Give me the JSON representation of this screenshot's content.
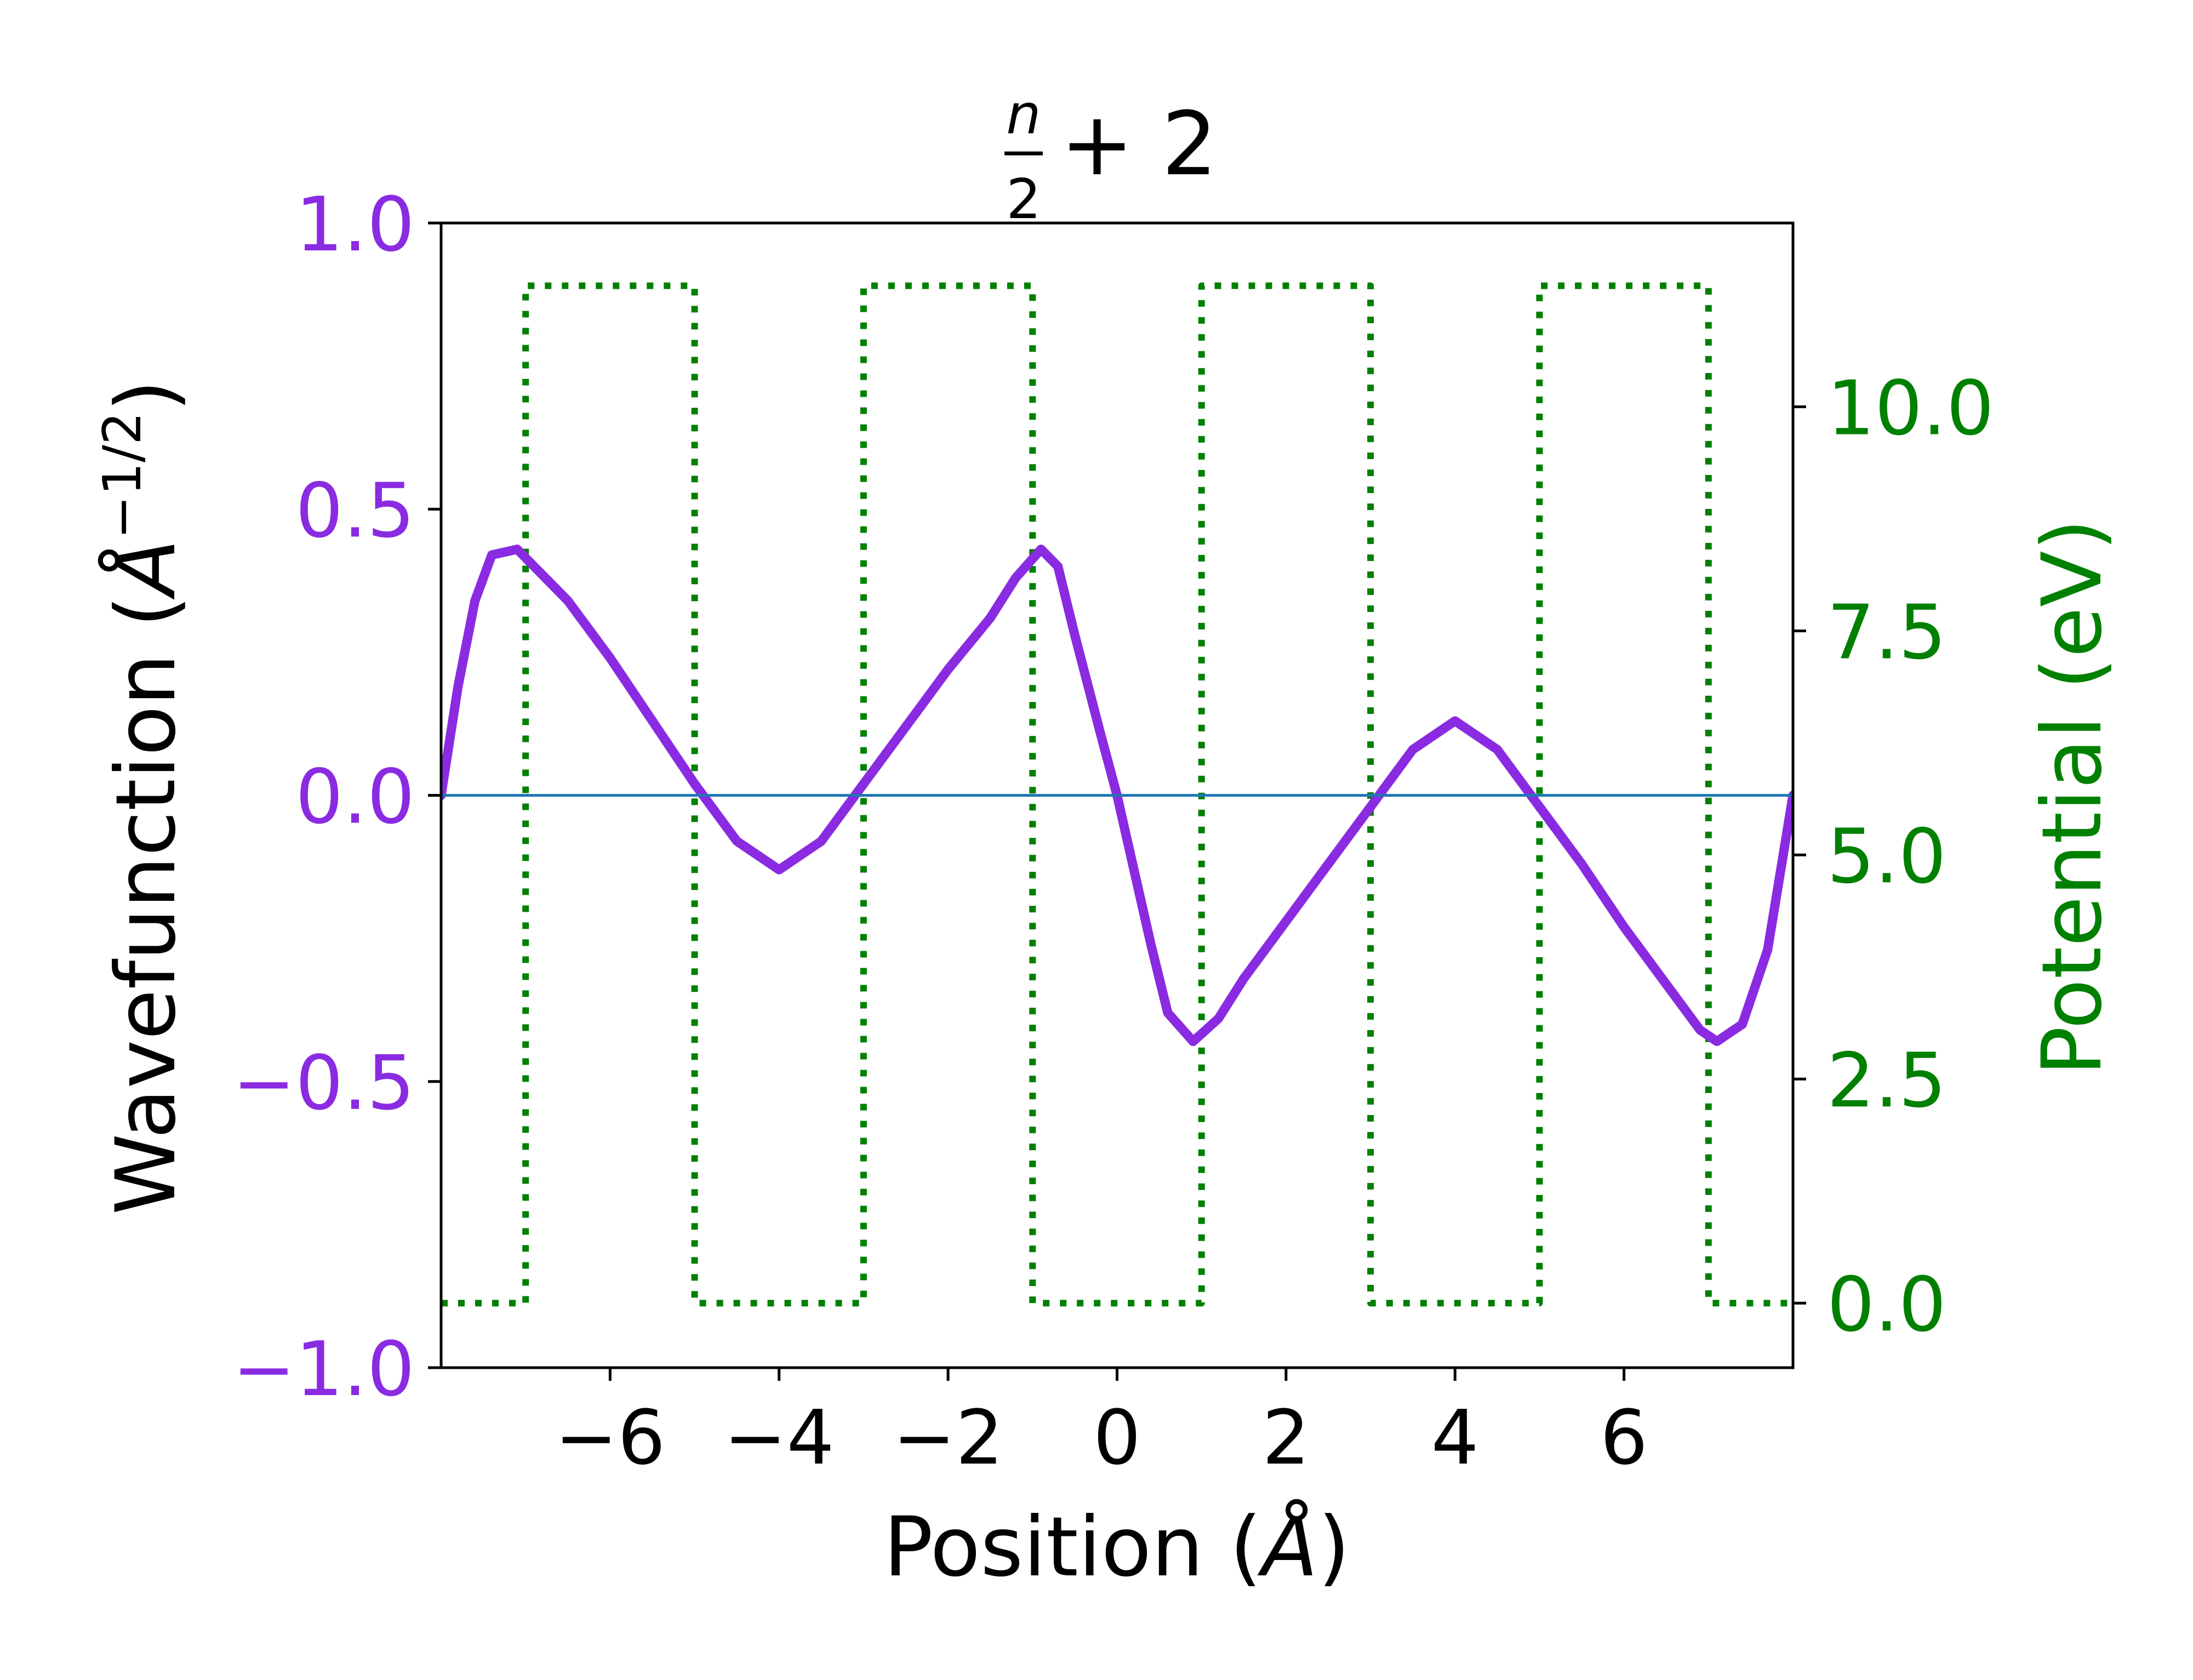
{
  "chart_data": {
    "type": "line",
    "title": {
      "fraction_numerator": "n",
      "fraction_denominator": "2",
      "suffix": "+ 2"
    },
    "xlabel": {
      "prefix": "Position (",
      "unit": "Å",
      "suffix": ")"
    },
    "ylabel_left": {
      "prefix": "Wavefunction (",
      "unit": "Å",
      "exponent": "−1/2",
      "suffix": ")"
    },
    "ylabel_right": "Potential (eV)",
    "xlim": [
      -8,
      8
    ],
    "ylim_left": [
      -1.0,
      1.0
    ],
    "ylim_right": [
      -0.72,
      12.05
    ],
    "xticks": [
      {
        "value": -6,
        "label": "−6"
      },
      {
        "value": -4,
        "label": "−4"
      },
      {
        "value": -2,
        "label": "−2"
      },
      {
        "value": 0,
        "label": "0"
      },
      {
        "value": 2,
        "label": "2"
      },
      {
        "value": 4,
        "label": "4"
      },
      {
        "value": 6,
        "label": "6"
      }
    ],
    "yticks_left": [
      {
        "value": -1.0,
        "label": "−1.0"
      },
      {
        "value": -0.5,
        "label": "−0.5"
      },
      {
        "value": 0.0,
        "label": "0.0"
      },
      {
        "value": 0.5,
        "label": "0.5"
      },
      {
        "value": 1.0,
        "label": "1.0"
      }
    ],
    "yticks_right": [
      {
        "value": 0.0,
        "label": "0.0"
      },
      {
        "value": 2.5,
        "label": "2.5"
      },
      {
        "value": 5.0,
        "label": "5.0"
      },
      {
        "value": 7.5,
        "label": "7.5"
      },
      {
        "value": 10.0,
        "label": "10.0"
      }
    ],
    "colors": {
      "wavefunction": "#8a2be2",
      "potential": "#008000",
      "zero_line": "#1f77b4",
      "left_axis_text": "#8a2be2",
      "right_axis_text": "#008000",
      "frame": "#000000"
    },
    "series": [
      {
        "key": "wavefunction",
        "axis": "left",
        "style": "solid",
        "points": [
          [
            -8.0,
            0.0
          ],
          [
            -7.8,
            0.19
          ],
          [
            -7.6,
            0.34
          ],
          [
            -7.4,
            0.42
          ],
          [
            -7.1,
            0.43
          ],
          [
            -6.5,
            0.34
          ],
          [
            -6.0,
            0.24
          ],
          [
            -5.5,
            0.13
          ],
          [
            -5.0,
            0.02
          ],
          [
            -4.5,
            -0.08
          ],
          [
            -4.0,
            -0.13
          ],
          [
            -3.5,
            -0.08
          ],
          [
            -3.0,
            0.02
          ],
          [
            -2.5,
            0.12
          ],
          [
            -2.0,
            0.22
          ],
          [
            -1.5,
            0.31
          ],
          [
            -1.2,
            0.38
          ],
          [
            -0.9,
            0.43
          ],
          [
            -0.7,
            0.4
          ],
          [
            -0.5,
            0.28
          ],
          [
            -0.2,
            0.11
          ],
          [
            0.0,
            0.0
          ],
          [
            0.2,
            -0.13
          ],
          [
            0.4,
            -0.26
          ],
          [
            0.6,
            -0.38
          ],
          [
            0.9,
            -0.43
          ],
          [
            1.2,
            -0.39
          ],
          [
            1.5,
            -0.32
          ],
          [
            2.0,
            -0.22
          ],
          [
            2.5,
            -0.12
          ],
          [
            3.0,
            -0.02
          ],
          [
            3.5,
            0.08
          ],
          [
            4.0,
            0.13
          ],
          [
            4.5,
            0.08
          ],
          [
            5.0,
            -0.02
          ],
          [
            5.5,
            -0.12
          ],
          [
            6.0,
            -0.23
          ],
          [
            6.5,
            -0.33
          ],
          [
            6.9,
            -0.41
          ],
          [
            7.1,
            -0.43
          ],
          [
            7.4,
            -0.4
          ],
          [
            7.7,
            -0.27
          ],
          [
            8.0,
            0.0
          ]
        ]
      },
      {
        "key": "potential",
        "axis": "right",
        "style": "dotted",
        "points": [
          [
            -8.0,
            0.0
          ],
          [
            -7.0,
            0.0
          ],
          [
            -7.0,
            11.35
          ],
          [
            -5.0,
            11.35
          ],
          [
            -5.0,
            0.0
          ],
          [
            -3.0,
            0.0
          ],
          [
            -3.0,
            11.35
          ],
          [
            -1.0,
            11.35
          ],
          [
            -1.0,
            0.0
          ],
          [
            1.0,
            0.0
          ],
          [
            1.0,
            11.35
          ],
          [
            3.0,
            11.35
          ],
          [
            3.0,
            0.0
          ],
          [
            5.0,
            0.0
          ],
          [
            5.0,
            11.35
          ],
          [
            7.0,
            11.35
          ],
          [
            7.0,
            0.0
          ],
          [
            8.0,
            0.0
          ]
        ]
      },
      {
        "key": "zero_line",
        "axis": "left",
        "style": "solid",
        "points": [
          [
            -8.0,
            0.0
          ],
          [
            8.0,
            0.0
          ]
        ]
      }
    ]
  }
}
